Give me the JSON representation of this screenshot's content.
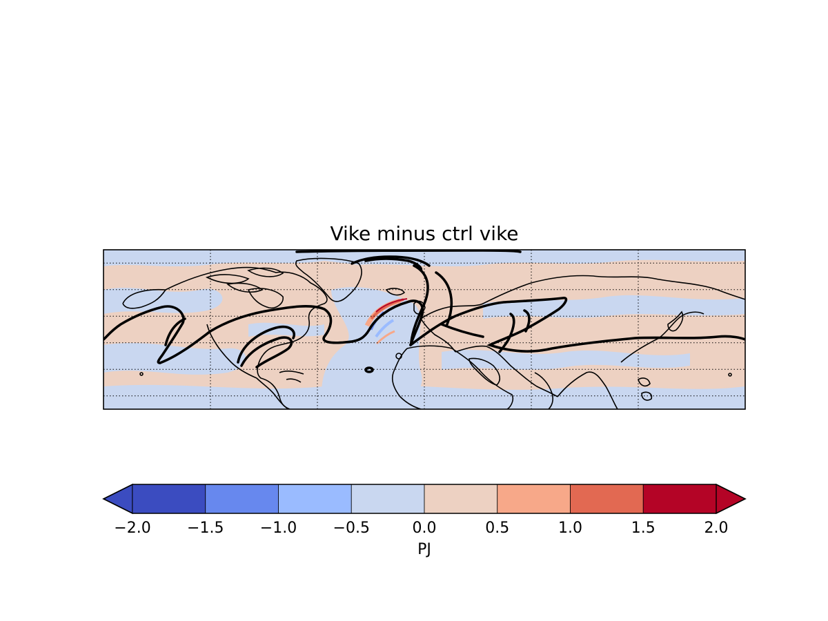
{
  "chart_data": {
    "type": "filled-contour map",
    "title": "Vike minus ctrl vike",
    "colorbar": {
      "label": "PJ",
      "extend": "both",
      "levels": [
        -2.0,
        -1.5,
        -1.0,
        -0.5,
        0.0,
        0.5,
        1.0,
        1.5,
        2.0
      ],
      "tick_labels": [
        "−2.0",
        "−1.5",
        "−1.0",
        "−0.5",
        "0.0",
        "0.5",
        "1.0",
        "1.5",
        "2.0"
      ],
      "colors": [
        "#3b4cc0",
        "#6788ee",
        "#9abbff",
        "#c9d7f0",
        "#edd1c2",
        "#f7a889",
        "#e26952",
        "#b40426"
      ],
      "under_color": "#3b4cc0",
      "over_color": "#b40426"
    },
    "map": {
      "projection": "cylindrical",
      "lon_range": [
        -180,
        180
      ],
      "lat_range": [
        -30,
        90
      ],
      "gridlines": "dotted",
      "parallels": [
        -20,
        0,
        20,
        40,
        60,
        80
      ],
      "meridians": [
        -120,
        -60,
        0,
        60,
        120
      ],
      "background_colors": {
        "positive": "#edd1c2",
        "negative": "#c9d7f0"
      },
      "jet_contour_color": "#000000"
    }
  }
}
